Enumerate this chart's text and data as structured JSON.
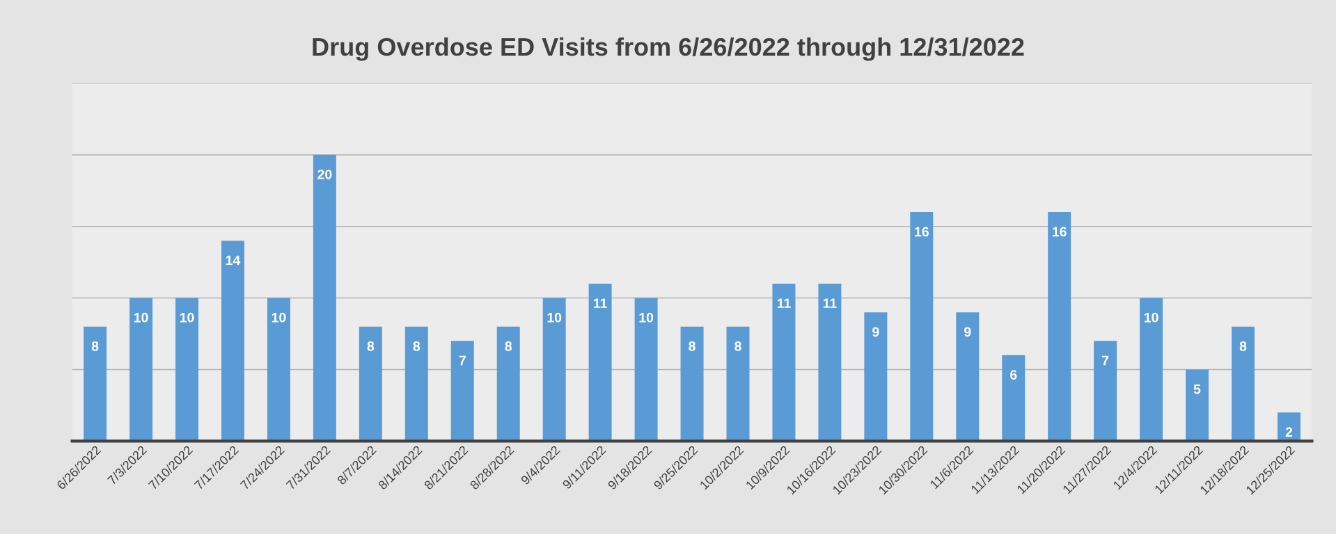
{
  "chart_data": {
    "type": "bar",
    "title": "Drug Overdose ED Visits from 6/26/2022 through 12/31/2022",
    "categories": [
      "6/26/2022",
      "7/3/2022",
      "7/10/2022",
      "7/17/2022",
      "7/24/2022",
      "7/31/2022",
      "8/7/2022",
      "8/14/2022",
      "8/21/2022",
      "8/28/2022",
      "9/4/2022",
      "9/11/2022",
      "9/18/2022",
      "9/25/2022",
      "10/2/2022",
      "10/9/2022",
      "10/16/2022",
      "10/23/2022",
      "10/30/2022",
      "11/6/2022",
      "11/13/2022",
      "11/20/2022",
      "11/27/2022",
      "12/4/2022",
      "12/11/2022",
      "12/18/2022",
      "12/25/2022"
    ],
    "values": [
      8,
      10,
      10,
      14,
      10,
      20,
      8,
      8,
      7,
      8,
      10,
      11,
      10,
      8,
      8,
      11,
      11,
      9,
      16,
      9,
      6,
      16,
      7,
      10,
      5,
      8,
      2
    ],
    "color": "#5b9bd5",
    "data_labels": true,
    "grid": "y",
    "ylim": [
      0,
      25
    ],
    "yticks": [
      {
        "value": 0,
        "label": null
      },
      {
        "value": 5,
        "label": null
      },
      {
        "value": 10,
        "label": null
      },
      {
        "value": 15,
        "label": null
      },
      {
        "value": 20,
        "label": null
      },
      {
        "value": 25,
        "label": null
      }
    ],
    "tick_labels": "x"
  }
}
